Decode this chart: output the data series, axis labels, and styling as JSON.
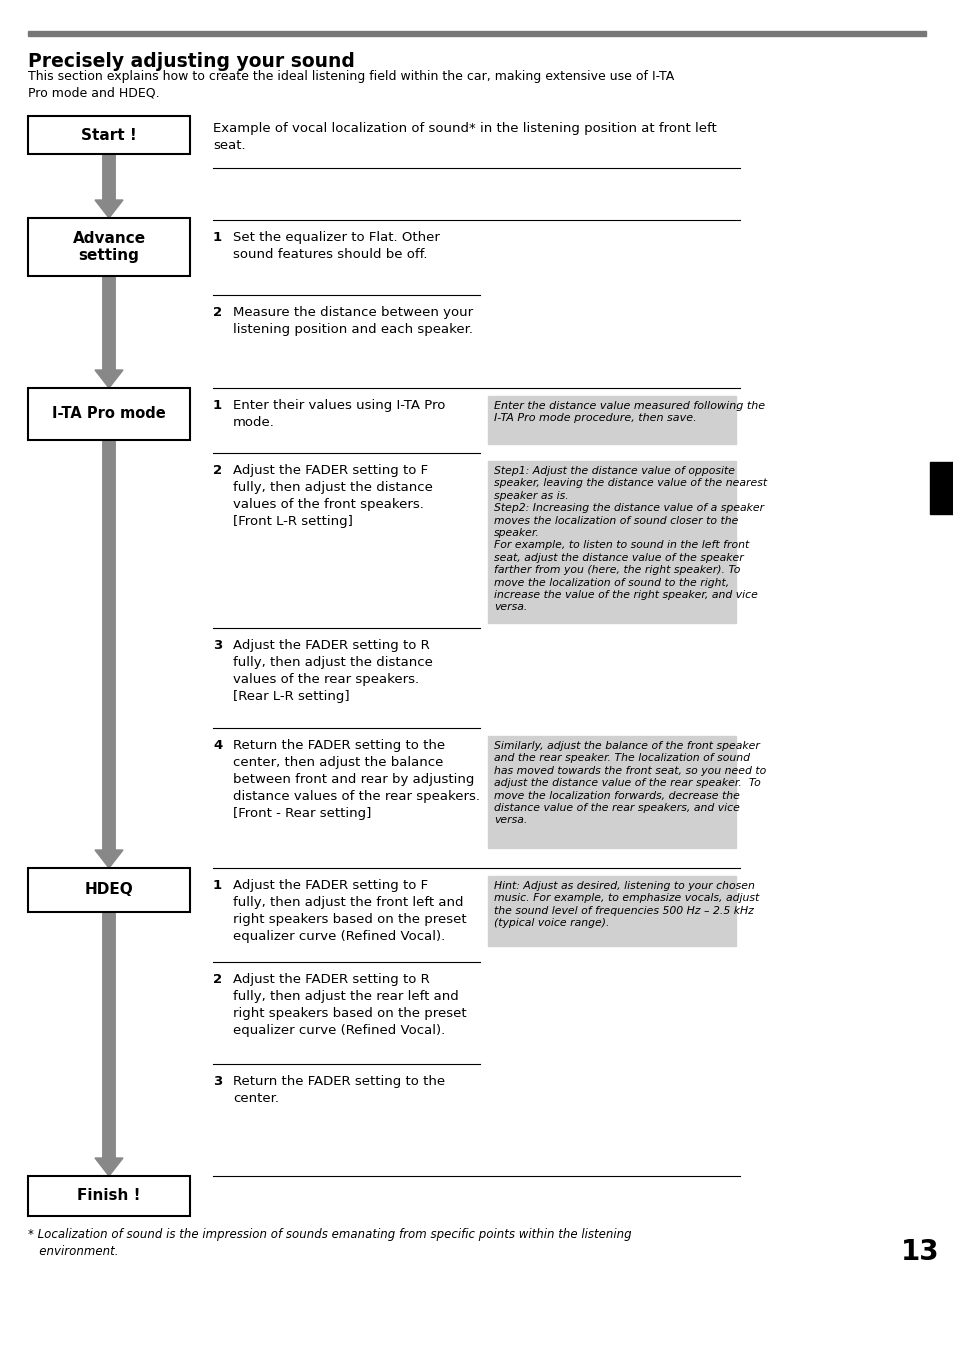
{
  "title": "Precisely adjusting your sound",
  "subtitle": "This section explains how to create the ideal listening field within the car, making extensive use of I-TA\nPro mode and HDEQ.",
  "page_number": "13",
  "top_bar_color": "#888888",
  "background_color": "#ffffff",
  "arrow_color": "#888888",
  "hint_bg": "#d0d0d0",
  "example_text": "Example of vocal localization of sound* in the listening position at front left\nseat.",
  "hint1": "Enter the distance value measured following the\nI-TA Pro mode procedure, then save.",
  "hint2": "Step1: Adjust the distance value of opposite\nspeaker, leaving the distance value of the nearest\nspeaker as is.\nStep2: Increasing the distance value of a speaker\nmoves the localization of sound closer to the\nspeaker.\nFor example, to listen to sound in the left front\nseat, adjust the distance value of the speaker\nfarther from you (here, the right speaker). To\nmove the localization of sound to the right,\nincrease the value of the right speaker, and vice\nversa.",
  "hint4": "Similarly, adjust the balance of the front speaker\nand the rear speaker. The localization of sound\nhas moved towards the front seat, so you need to\nadjust the distance value of the rear speaker.  To\nmove the localization forwards, decrease the\ndistance value of the rear speakers, and vice\nversa.",
  "hintH1": "Hint: Adjust as desired, listening to your chosen\nmusic. For example, to emphasize vocals, adjust\nthe sound level of frequencies 500 Hz – 2.5 kHz\n(typical voice range).",
  "footnote_star": "* Localization of sound is the impression of sounds emanating from specific points within the listening",
  "footnote_indent": "   environment."
}
